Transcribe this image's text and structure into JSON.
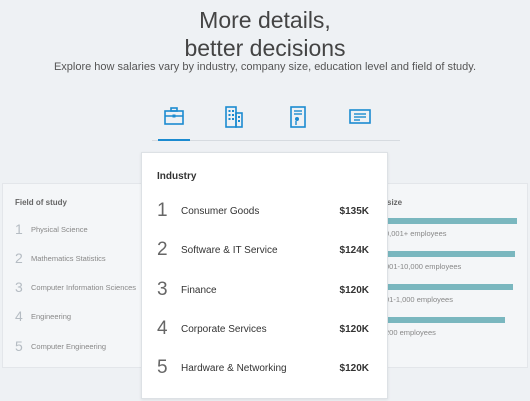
{
  "hero": {
    "title_line1": "More details,",
    "title_line2": "better decisions",
    "subtitle": "Explore how salaries vary by industry, company size, education level and field of study."
  },
  "tabs": [
    {
      "icon": "briefcase-icon",
      "active": true
    },
    {
      "icon": "building-icon",
      "active": false
    },
    {
      "icon": "diploma-icon",
      "active": false
    },
    {
      "icon": "certificate-icon",
      "active": false
    }
  ],
  "colors": {
    "accent": "#1b8bd0",
    "bar": "#7ab7bf"
  },
  "field_of_study": {
    "title": "Field of study",
    "items": [
      {
        "rank": "1",
        "label": "Physical Science"
      },
      {
        "rank": "2",
        "label": "Mathematics Statistics"
      },
      {
        "rank": "3",
        "label": "Computer Information Sciences"
      },
      {
        "rank": "4",
        "label": "Engineering"
      },
      {
        "rank": "5",
        "label": "Computer Engineering"
      }
    ]
  },
  "industry": {
    "title": "Industry",
    "items": [
      {
        "rank": "1",
        "label": "Consumer Goods",
        "value": "$135K"
      },
      {
        "rank": "2",
        "label": "Software & IT Service",
        "value": "$124K"
      },
      {
        "rank": "3",
        "label": "Finance",
        "value": "$120K"
      },
      {
        "rank": "4",
        "label": "Corporate Services",
        "value": "$120K"
      },
      {
        "rank": "5",
        "label": "Hardware & Networking",
        "value": "$120K"
      }
    ]
  },
  "company_size": {
    "title": "size",
    "items": [
      {
        "label": "0,001+ employees"
      },
      {
        "label": "001-10,000 employees"
      },
      {
        "label": "01-1,000 employees"
      },
      {
        "label": "200 employees"
      }
    ]
  }
}
